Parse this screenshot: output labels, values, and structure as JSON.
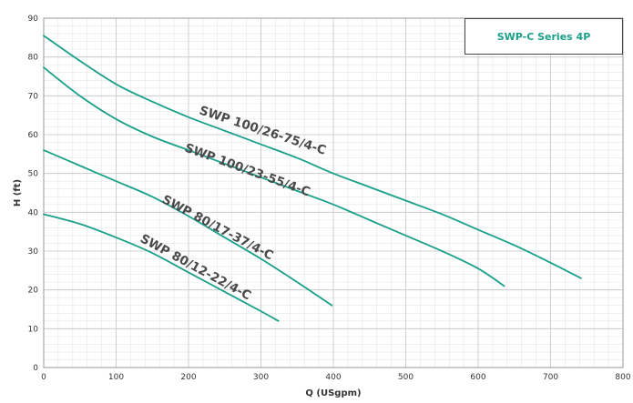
{
  "chart_data": {
    "type": "line",
    "xlabel": "Q (USgpm)",
    "ylabel": "H (ft)",
    "xlim": [
      0,
      800
    ],
    "ylim": [
      0,
      90
    ],
    "x_ticks": [
      0,
      100,
      200,
      300,
      400,
      500,
      600,
      700,
      800
    ],
    "y_ticks": [
      0,
      10,
      20,
      30,
      40,
      50,
      60,
      70,
      80,
      90
    ],
    "grid": true,
    "legend_title": "SWP-C Series 4P",
    "legend_placement": "top-right",
    "line_color": "#1aa089",
    "series": [
      {
        "name": "SWP 100/26-75/4-C",
        "x": [
          0,
          50,
          100,
          150,
          200,
          250,
          300,
          350,
          400,
          450,
          500,
          550,
          600,
          650,
          700,
          742
        ],
        "y": [
          85.5,
          79,
          73,
          68.5,
          64.5,
          61,
          57.5,
          54,
          50,
          46.5,
          43,
          39.5,
          35.5,
          31.5,
          27,
          23
        ]
      },
      {
        "name": "SWP 100/23-55/4-C",
        "x": [
          0,
          50,
          100,
          150,
          200,
          250,
          300,
          350,
          400,
          450,
          500,
          550,
          600,
          636
        ],
        "y": [
          77.3,
          70,
          64,
          59.5,
          56,
          52.5,
          49,
          45.5,
          42,
          38,
          34,
          30,
          25.5,
          21
        ]
      },
      {
        "name": "SWP 80/17-37/4-C",
        "x": [
          0,
          50,
          100,
          150,
          200,
          250,
          300,
          350,
          398
        ],
        "y": [
          56,
          52,
          48,
          44,
          39,
          33.5,
          28,
          22,
          16
        ]
      },
      {
        "name": "SWP 80/12-22/4-C",
        "x": [
          0,
          50,
          100,
          150,
          200,
          250,
          300,
          324
        ],
        "y": [
          39.5,
          37,
          33.5,
          29.5,
          24.5,
          19.5,
          14.5,
          12
        ]
      }
    ]
  }
}
